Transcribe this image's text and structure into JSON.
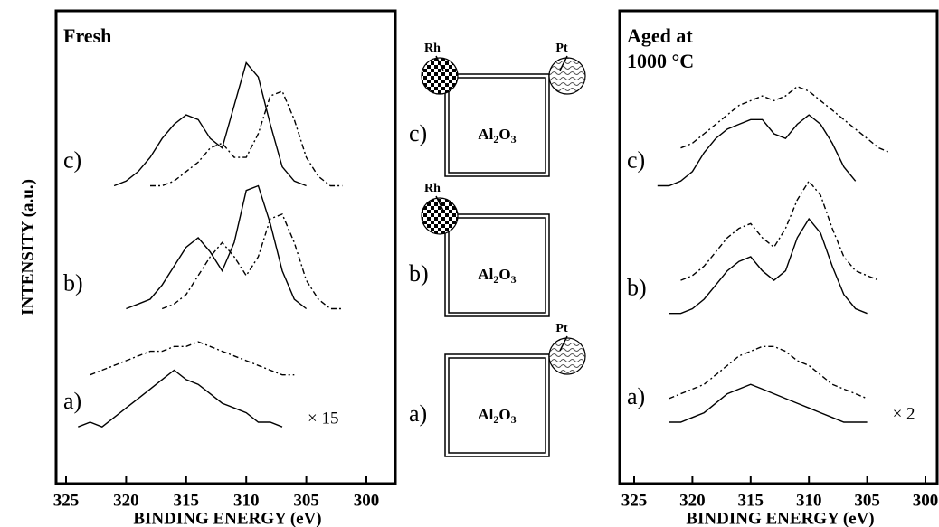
{
  "chart_data": [
    {
      "type": "line",
      "title": [
        "Fresh"
      ],
      "xlabel": "BINDING ENERGY (eV)",
      "ylabel": "INTENSITY (a.u.)",
      "x": [
        324,
        323,
        322,
        321,
        320,
        319,
        318,
        317,
        316,
        315,
        314,
        313,
        312,
        311,
        310,
        309,
        308,
        307,
        306,
        305,
        304,
        303,
        302
      ],
      "xlim": [
        325,
        300
      ],
      "xticks": [
        325,
        320,
        315,
        310,
        305,
        300
      ],
      "ylim": [
        0,
        100
      ],
      "curve_labels": [
        "a)",
        "b)",
        "c)"
      ],
      "scale_note": "× 15",
      "series": [
        {
          "color": "#000000",
          "dash": "solid",
          "values": [
            12,
            13,
            12,
            14,
            16,
            18,
            20,
            22,
            24,
            22,
            21,
            19,
            17,
            16,
            15,
            13,
            13,
            12,
            null,
            null,
            null,
            null,
            null
          ]
        },
        {
          "color": "#000000",
          "dash": "dashdot",
          "values": [
            null,
            23,
            24,
            25,
            26,
            27,
            28,
            28,
            29,
            29,
            30,
            29,
            28,
            27,
            26,
            25,
            24,
            23,
            23,
            null,
            null,
            null,
            null
          ]
        },
        {
          "color": "#000000",
          "dash": "solid",
          "values": [
            null,
            null,
            null,
            null,
            37,
            38,
            39,
            42,
            46,
            50,
            52,
            49,
            45,
            51,
            62,
            63,
            55,
            45,
            39,
            37,
            null,
            null,
            null
          ]
        },
        {
          "color": "#000000",
          "dash": "dashdot",
          "values": [
            null,
            null,
            null,
            null,
            null,
            null,
            null,
            37,
            38,
            40,
            44,
            48,
            51,
            48,
            44,
            48,
            56,
            57,
            51,
            43,
            39,
            37,
            37
          ]
        },
        {
          "color": "#000000",
          "dash": "solid",
          "values": [
            null,
            null,
            null,
            63,
            64,
            66,
            69,
            73,
            76,
            78,
            77,
            73,
            71,
            80,
            89,
            86,
            76,
            67,
            64,
            63,
            null,
            null,
            null
          ]
        },
        {
          "color": "#000000",
          "dash": "dashdot",
          "values": [
            null,
            null,
            null,
            null,
            null,
            null,
            63,
            63,
            64,
            66,
            68,
            71,
            72,
            69,
            69,
            74,
            82,
            83,
            77,
            69,
            65,
            63,
            63
          ]
        }
      ]
    },
    {
      "type": "line",
      "title": [
        "Aged at",
        "1000 °C"
      ],
      "xlabel": "BINDING ENERGY (eV)",
      "x": [
        323,
        322,
        321,
        320,
        319,
        318,
        317,
        316,
        315,
        314,
        313,
        312,
        311,
        310,
        309,
        308,
        307,
        306,
        305,
        304,
        303
      ],
      "xlim": [
        325,
        300
      ],
      "xticks": [
        325,
        320,
        315,
        310,
        305,
        300
      ],
      "ylim": [
        0,
        100
      ],
      "curve_labels": [
        "a)",
        "b)",
        "c)"
      ],
      "scale_note": "× 2",
      "series": [
        {
          "color": "#000000",
          "dash": "solid",
          "values": [
            null,
            13,
            13,
            14,
            15,
            17,
            19,
            20,
            21,
            20,
            19,
            18,
            17,
            16,
            15,
            14,
            13,
            13,
            13,
            null,
            null
          ]
        },
        {
          "color": "#000000",
          "dash": "dashdot",
          "values": [
            null,
            18,
            19,
            20,
            21,
            23,
            25,
            27,
            28,
            29,
            29,
            28,
            26,
            25,
            23,
            21,
            20,
            19,
            18,
            null,
            null
          ]
        },
        {
          "color": "#000000",
          "dash": "solid",
          "values": [
            null,
            36,
            36,
            37,
            39,
            42,
            45,
            47,
            48,
            45,
            43,
            45,
            52,
            56,
            53,
            46,
            40,
            37,
            36,
            null,
            null
          ]
        },
        {
          "color": "#000000",
          "dash": "dashdot",
          "values": [
            null,
            null,
            43,
            44,
            46,
            49,
            52,
            54,
            55,
            52,
            50,
            54,
            60,
            64,
            61,
            54,
            48,
            45,
            44,
            43,
            null
          ]
        },
        {
          "color": "#000000",
          "dash": "solid",
          "values": [
            63,
            63,
            64,
            66,
            70,
            73,
            75,
            76,
            77,
            77,
            74,
            73,
            76,
            78,
            76,
            72,
            67,
            64,
            null,
            null,
            null
          ]
        },
        {
          "color": "#000000",
          "dash": "dashdot",
          "values": [
            null,
            null,
            71,
            72,
            74,
            76,
            78,
            80,
            81,
            82,
            81,
            82,
            84,
            83,
            81,
            79,
            77,
            75,
            73,
            71,
            70
          ]
        }
      ]
    }
  ],
  "schematics": [
    {
      "label": "a)",
      "support": "Al2O3",
      "particles": [
        "Pt"
      ]
    },
    {
      "label": "b)",
      "support": "Al2O3",
      "particles": [
        "Rh"
      ]
    },
    {
      "label": "c)",
      "support": "Al2O3",
      "particles": [
        "Rh",
        "Pt"
      ]
    }
  ]
}
